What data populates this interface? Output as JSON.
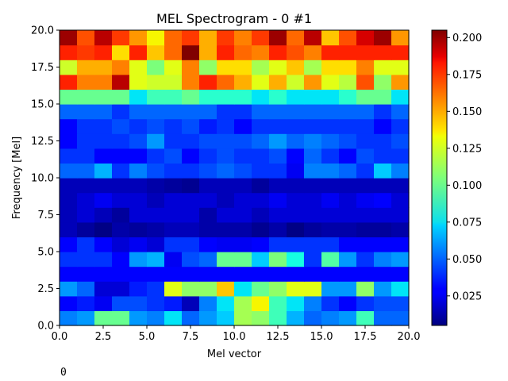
{
  "chart_data": {
    "type": "heatmap",
    "title": "MEL Spectrogram - 0 #1",
    "xlabel": "Mel vector",
    "ylabel": "Frequency [Mel]",
    "xlim": [
      0,
      20
    ],
    "ylim": [
      0,
      20
    ],
    "xticks": [
      "0.0",
      "2.5",
      "5.0",
      "7.5",
      "10.0",
      "12.5",
      "15.0",
      "17.5",
      "20.0"
    ],
    "yticks": [
      "0.0",
      "2.5",
      "5.0",
      "7.5",
      "10.0",
      "12.5",
      "15.0",
      "17.5",
      "20.0"
    ],
    "colormap": "jet",
    "colorbar": {
      "vmin": 0.005,
      "vmax": 0.205,
      "ticks": [
        "0.025",
        "0.050",
        "0.075",
        "0.100",
        "0.125",
        "0.150",
        "0.175",
        "0.200"
      ]
    },
    "rows_bottom_to_top": [
      [
        0.055,
        0.06,
        0.1,
        0.1,
        0.06,
        0.055,
        0.075,
        0.05,
        0.06,
        0.07,
        0.115,
        0.11,
        0.09,
        0.065,
        0.05,
        0.055,
        0.06,
        0.09,
        0.05,
        0.05
      ],
      [
        0.03,
        0.035,
        0.025,
        0.045,
        0.045,
        0.04,
        0.035,
        0.015,
        0.055,
        0.075,
        0.115,
        0.135,
        0.09,
        0.075,
        0.055,
        0.04,
        0.03,
        0.04,
        0.045,
        0.045
      ],
      [
        0.06,
        0.05,
        0.02,
        0.02,
        0.035,
        0.04,
        0.13,
        0.11,
        0.11,
        0.145,
        0.075,
        0.1,
        0.11,
        0.13,
        0.13,
        0.06,
        0.06,
        0.11,
        0.06,
        0.075
      ],
      [
        0.03,
        0.03,
        0.03,
        0.03,
        0.03,
        0.03,
        0.03,
        0.03,
        0.03,
        0.03,
        0.03,
        0.03,
        0.03,
        0.03,
        0.03,
        0.03,
        0.03,
        0.03,
        0.03,
        0.03
      ],
      [
        0.04,
        0.04,
        0.04,
        0.03,
        0.06,
        0.065,
        0.025,
        0.045,
        0.05,
        0.1,
        0.1,
        0.07,
        0.105,
        0.08,
        0.04,
        0.095,
        0.06,
        0.04,
        0.055,
        0.06
      ],
      [
        0.03,
        0.04,
        0.03,
        0.02,
        0.025,
        0.02,
        0.04,
        0.04,
        0.03,
        0.025,
        0.025,
        0.03,
        0.04,
        0.04,
        0.04,
        0.04,
        0.03,
        0.03,
        0.03,
        0.03
      ],
      [
        0.015,
        0.01,
        0.006,
        0.012,
        0.01,
        0.012,
        0.015,
        0.015,
        0.012,
        0.012,
        0.012,
        0.008,
        0.012,
        0.006,
        0.01,
        0.012,
        0.012,
        0.01,
        0.01,
        0.012
      ],
      [
        0.015,
        0.02,
        0.015,
        0.01,
        0.02,
        0.02,
        0.02,
        0.02,
        0.012,
        0.02,
        0.02,
        0.015,
        0.02,
        0.02,
        0.02,
        0.02,
        0.02,
        0.02,
        0.02,
        0.02
      ],
      [
        0.015,
        0.02,
        0.025,
        0.02,
        0.02,
        0.015,
        0.02,
        0.02,
        0.02,
        0.015,
        0.02,
        0.02,
        0.025,
        0.02,
        0.02,
        0.025,
        0.02,
        0.025,
        0.03,
        0.02
      ],
      [
        0.015,
        0.015,
        0.015,
        0.015,
        0.015,
        0.012,
        0.01,
        0.008,
        0.015,
        0.015,
        0.015,
        0.01,
        0.015,
        0.015,
        0.015,
        0.015,
        0.015,
        0.015,
        0.015,
        0.015
      ],
      [
        0.05,
        0.05,
        0.065,
        0.04,
        0.055,
        0.045,
        0.04,
        0.04,
        0.045,
        0.05,
        0.045,
        0.04,
        0.04,
        0.025,
        0.055,
        0.055,
        0.05,
        0.04,
        0.07,
        0.055
      ],
      [
        0.04,
        0.04,
        0.03,
        0.03,
        0.03,
        0.04,
        0.045,
        0.03,
        0.04,
        0.045,
        0.04,
        0.04,
        0.045,
        0.03,
        0.05,
        0.04,
        0.03,
        0.045,
        0.04,
        0.04
      ],
      [
        0.03,
        0.04,
        0.04,
        0.04,
        0.045,
        0.06,
        0.04,
        0.04,
        0.045,
        0.045,
        0.045,
        0.05,
        0.06,
        0.05,
        0.055,
        0.05,
        0.045,
        0.04,
        0.04,
        0.045
      ],
      [
        0.03,
        0.04,
        0.04,
        0.045,
        0.04,
        0.045,
        0.04,
        0.045,
        0.035,
        0.04,
        0.03,
        0.04,
        0.04,
        0.04,
        0.04,
        0.04,
        0.04,
        0.04,
        0.03,
        0.04
      ],
      [
        0.05,
        0.05,
        0.05,
        0.04,
        0.05,
        0.05,
        0.05,
        0.05,
        0.05,
        0.04,
        0.04,
        0.05,
        0.05,
        0.05,
        0.05,
        0.05,
        0.05,
        0.05,
        0.04,
        0.05
      ],
      [
        0.1,
        0.1,
        0.1,
        0.1,
        0.075,
        0.09,
        0.09,
        0.1,
        0.085,
        0.085,
        0.085,
        0.075,
        0.085,
        0.075,
        0.075,
        0.075,
        0.085,
        0.1,
        0.1,
        0.075
      ],
      [
        0.18,
        0.16,
        0.16,
        0.195,
        0.13,
        0.125,
        0.125,
        0.16,
        0.18,
        0.165,
        0.15,
        0.13,
        0.15,
        0.125,
        0.155,
        0.13,
        0.12,
        0.17,
        0.11,
        0.155
      ],
      [
        0.125,
        0.15,
        0.15,
        0.16,
        0.13,
        0.105,
        0.13,
        0.16,
        0.11,
        0.14,
        0.14,
        0.115,
        0.13,
        0.145,
        0.115,
        0.14,
        0.14,
        0.16,
        0.13,
        0.13
      ],
      [
        0.18,
        0.175,
        0.18,
        0.14,
        0.18,
        0.145,
        0.165,
        0.205,
        0.15,
        0.18,
        0.165,
        0.16,
        0.18,
        0.17,
        0.16,
        0.18,
        0.18,
        0.18,
        0.18,
        0.18
      ],
      [
        0.2,
        0.17,
        0.195,
        0.175,
        0.155,
        0.135,
        0.165,
        0.175,
        0.15,
        0.175,
        0.16,
        0.175,
        0.2,
        0.165,
        0.195,
        0.145,
        0.17,
        0.19,
        0.2,
        0.155
      ]
    ]
  },
  "footer": {
    "text": "0"
  }
}
